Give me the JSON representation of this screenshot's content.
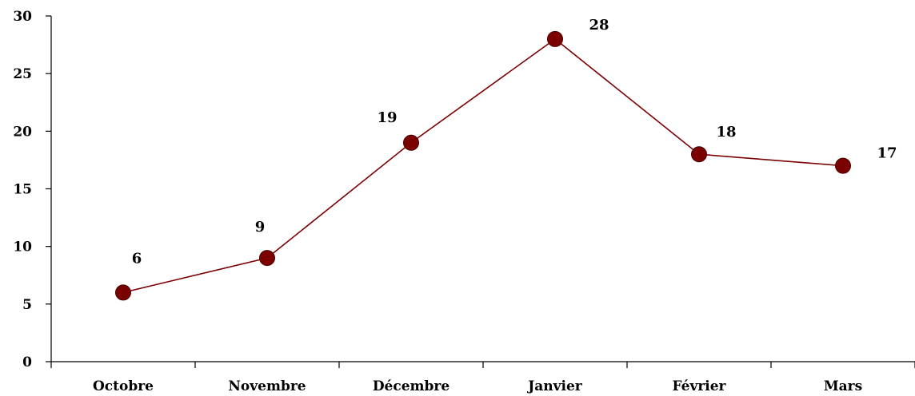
{
  "chart_data": {
    "type": "line",
    "title": "",
    "xlabel": "",
    "ylabel": "",
    "categories": [
      "Octobre",
      "Novembre",
      "Décembre",
      "Janvier",
      "Février",
      "Mars"
    ],
    "series": [
      {
        "values": [
          6,
          9,
          19,
          28,
          18,
          17
        ],
        "color": "#7b0000"
      }
    ],
    "ylim": [
      0,
      30
    ],
    "yticks": [
      "0",
      "5",
      "10",
      "15",
      "20",
      "25",
      "30"
    ],
    "data_labels": [
      "6",
      "9",
      "19",
      "28",
      "18",
      "17"
    ],
    "grid": false,
    "legend": "none"
  }
}
